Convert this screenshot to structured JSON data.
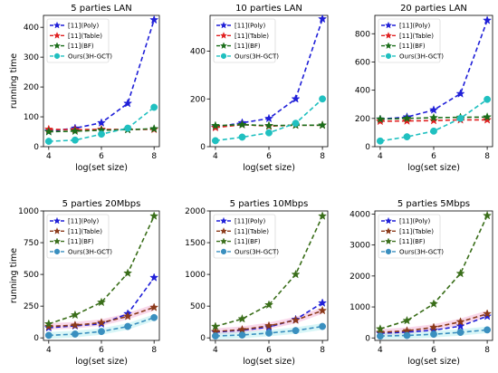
{
  "chart_data": [
    {
      "type": "line",
      "title": "5 parties LAN",
      "xlabel": "log(set size)",
      "ylabel": "running time",
      "x": [
        4,
        5,
        6,
        7,
        8
      ],
      "xticks": [
        "4",
        "6",
        "8"
      ],
      "ylim": [
        0,
        440
      ],
      "yticks": [
        "0",
        "100",
        "200",
        "300",
        "400"
      ],
      "legend": "top-left",
      "series": [
        {
          "name": "[11](Poly)",
          "color": "#1f1fd8",
          "marker": "star",
          "values": [
            52,
            62,
            80,
            145,
            425
          ]
        },
        {
          "name": "[11](Table)",
          "color": "#e02020",
          "marker": "star",
          "values": [
            58,
            57,
            58,
            58,
            58
          ]
        },
        {
          "name": "[11](BF)",
          "color": "#1a6e1a",
          "marker": "star",
          "values": [
            50,
            52,
            55,
            57,
            60
          ]
        },
        {
          "name": "Ours(3H-GCT)",
          "color": "#20c0c0",
          "marker": "circle",
          "values": [
            18,
            22,
            42,
            62,
            132
          ]
        }
      ]
    },
    {
      "type": "line",
      "title": "10 parties LAN",
      "xlabel": "log(set size)",
      "ylabel": "",
      "x": [
        4,
        5,
        6,
        7,
        8
      ],
      "xticks": [
        "4",
        "6",
        "8"
      ],
      "ylim": [
        0,
        550
      ],
      "yticks": [
        "0",
        "200",
        "400"
      ],
      "legend": "top-left",
      "series": [
        {
          "name": "[11](Poly)",
          "color": "#1f1fd8",
          "marker": "star",
          "values": [
            82,
            100,
            118,
            200,
            535
          ]
        },
        {
          "name": "[11](Table)",
          "color": "#e02020",
          "marker": "star",
          "values": [
            80,
            92,
            86,
            90,
            90
          ]
        },
        {
          "name": "[11](BF)",
          "color": "#1a6e1a",
          "marker": "star",
          "values": [
            88,
            92,
            88,
            90,
            90
          ]
        },
        {
          "name": "Ours(3H-GCT)",
          "color": "#20c0c0",
          "marker": "circle",
          "values": [
            25,
            40,
            58,
            98,
            200
          ]
        }
      ]
    },
    {
      "type": "line",
      "title": "20 parties LAN",
      "xlabel": "log(set size)",
      "ylabel": "",
      "x": [
        4,
        5,
        6,
        7,
        8
      ],
      "xticks": [
        "4",
        "6",
        "8"
      ],
      "ylim": [
        0,
        930
      ],
      "yticks": [
        "0",
        "200",
        "400",
        "600",
        "800"
      ],
      "legend": "top-left",
      "series": [
        {
          "name": "[11](Poly)",
          "color": "#1f1fd8",
          "marker": "star",
          "values": [
            195,
            210,
            260,
            375,
            895
          ]
        },
        {
          "name": "[11](Table)",
          "color": "#e02020",
          "marker": "star",
          "values": [
            180,
            182,
            185,
            190,
            190
          ]
        },
        {
          "name": "[11](BF)",
          "color": "#1a6e1a",
          "marker": "star",
          "values": [
            195,
            200,
            205,
            208,
            210
          ]
        },
        {
          "name": "Ours(3H-GCT)",
          "color": "#20c0c0",
          "marker": "circle",
          "values": [
            40,
            70,
            110,
            200,
            335
          ]
        }
      ]
    },
    {
      "type": "line",
      "title": "5 parties 20Mbps",
      "xlabel": "log(set size)",
      "ylabel": "running time",
      "x": [
        4,
        5,
        6,
        7,
        8
      ],
      "xticks": [
        "4",
        "6",
        "8"
      ],
      "ylim": [
        -20,
        1000
      ],
      "yticks": [
        "0",
        "250",
        "500",
        "750",
        "1000"
      ],
      "legend": "top-left",
      "series": [
        {
          "name": "[11](Poly)",
          "color": "#1f1fd8",
          "marker": "star",
          "values": [
            80,
            95,
            110,
            190,
            475
          ]
        },
        {
          "name": "[11](Table)",
          "color": "#8b3a1a",
          "marker": "star",
          "values": [
            90,
            100,
            120,
            170,
            240
          ]
        },
        {
          "name": "[11](BF)",
          "color": "#3a6e1a",
          "marker": "star",
          "values": [
            110,
            180,
            280,
            510,
            960
          ]
        },
        {
          "name": "Ours(3H-GCT)",
          "color": "#3a8fbf",
          "marker": "circle",
          "values": [
            20,
            30,
            50,
            90,
            160
          ]
        }
      ]
    },
    {
      "type": "line",
      "title": "5 parties 10Mbps",
      "xlabel": "log(set size)",
      "ylabel": "",
      "x": [
        4,
        5,
        6,
        7,
        8
      ],
      "xticks": [
        "4",
        "6",
        "8"
      ],
      "ylim": [
        -40,
        2000
      ],
      "yticks": [
        "0",
        "500",
        "1000",
        "1500",
        "2000"
      ],
      "legend": "top-left",
      "series": [
        {
          "name": "[11](Poly)",
          "color": "#1f1fd8",
          "marker": "star",
          "values": [
            90,
            120,
            170,
            290,
            550
          ]
        },
        {
          "name": "[11](Table)",
          "color": "#8b3a1a",
          "marker": "star",
          "values": [
            100,
            130,
            190,
            280,
            430
          ]
        },
        {
          "name": "[11](BF)",
          "color": "#3a6e1a",
          "marker": "star",
          "values": [
            180,
            300,
            520,
            1000,
            1920
          ]
        },
        {
          "name": "Ours(3H-GCT)",
          "color": "#3a8fbf",
          "marker": "circle",
          "values": [
            30,
            45,
            75,
            115,
            180
          ]
        }
      ]
    },
    {
      "type": "line",
      "title": "5 parties 5Mbps",
      "xlabel": "log(set size)",
      "ylabel": "",
      "x": [
        4,
        5,
        6,
        7,
        8
      ],
      "xticks": [
        "4",
        "6",
        "8"
      ],
      "ylim": [
        -80,
        4100
      ],
      "yticks": [
        "0",
        "1000",
        "2000",
        "3000",
        "4000"
      ],
      "legend": "top-left",
      "series": [
        {
          "name": "[11](Poly)",
          "color": "#1f1fd8",
          "marker": "star",
          "values": [
            150,
            190,
            250,
            380,
            700
          ]
        },
        {
          "name": "[11](Table)",
          "color": "#8b3a1a",
          "marker": "star",
          "values": [
            180,
            230,
            340,
            520,
            780
          ]
        },
        {
          "name": "[11](BF)",
          "color": "#3a6e1a",
          "marker": "star",
          "values": [
            290,
            560,
            1100,
            2080,
            3950
          ]
        },
        {
          "name": "Ours(3H-GCT)",
          "color": "#3a8fbf",
          "marker": "circle",
          "values": [
            60,
            80,
            120,
            180,
            260
          ]
        }
      ]
    }
  ]
}
